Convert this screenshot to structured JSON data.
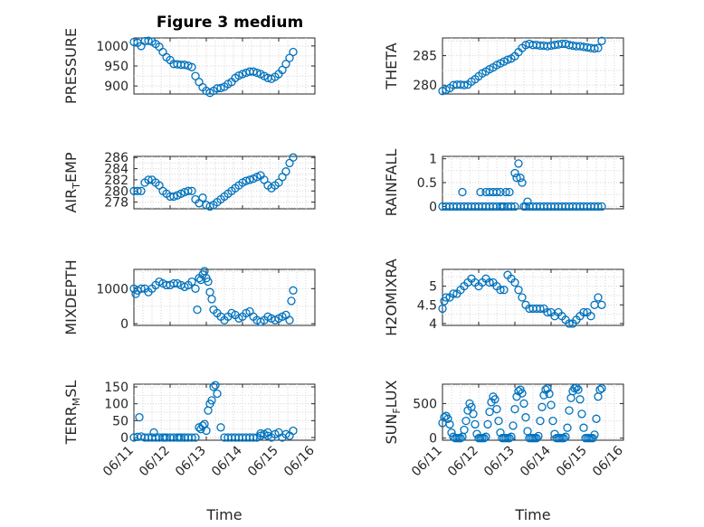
{
  "figure": {
    "title": "Figure 3 medium",
    "colors": {
      "marker": "#0072bd",
      "axis": "#262626",
      "grid": "#d6d6d6",
      "background": "#ffffff"
    }
  },
  "chart_data": [
    {
      "id": "pressure",
      "type": "scatter",
      "title": "Figure 3 medium",
      "ylabel": {
        "main": "PRESSURE",
        "sub": "",
        "rest": ""
      },
      "xlim": [
        0,
        5
      ],
      "ylim": [
        880,
        1020
      ],
      "yticks": [
        900,
        950,
        1000
      ],
      "xticks": [
        0,
        1,
        2,
        3,
        4,
        5
      ],
      "xticklabels": [],
      "xlabel": "",
      "grid": true,
      "x": [
        0.0,
        0.1,
        0.2,
        0.3,
        0.4,
        0.5,
        0.6,
        0.7,
        0.8,
        0.9,
        1.0,
        1.1,
        1.2,
        1.3,
        1.4,
        1.5,
        1.6,
        1.7,
        1.8,
        1.9,
        2.0,
        2.1,
        2.2,
        2.3,
        2.4,
        2.5,
        2.6,
        2.7,
        2.8,
        2.9,
        3.0,
        3.1,
        3.2,
        3.3,
        3.4,
        3.5,
        3.6,
        3.7,
        3.8,
        3.9,
        4.0,
        4.1,
        4.2,
        4.3,
        4.4
      ],
      "y": [
        1010,
        1008,
        1000,
        1012,
        1013,
        1011,
        1005,
        998,
        985,
        972,
        965,
        955,
        954,
        953,
        953,
        951,
        947,
        925,
        910,
        897,
        888,
        883,
        888,
        894,
        895,
        898,
        905,
        910,
        920,
        926,
        930,
        933,
        936,
        936,
        933,
        930,
        925,
        920,
        918,
        923,
        930,
        940,
        955,
        970,
        985
      ]
    },
    {
      "id": "theta",
      "type": "scatter",
      "ylabel": {
        "main": "THETA",
        "sub": "",
        "rest": ""
      },
      "xlim": [
        0,
        5
      ],
      "ylim": [
        278.5,
        288
      ],
      "yticks": [
        280,
        285
      ],
      "xticks": [
        0,
        1,
        2,
        3,
        4,
        5
      ],
      "xticklabels": [],
      "xlabel": "",
      "grid": true,
      "x": [
        0.0,
        0.1,
        0.2,
        0.3,
        0.4,
        0.5,
        0.6,
        0.7,
        0.8,
        0.9,
        1.0,
        1.1,
        1.2,
        1.3,
        1.4,
        1.5,
        1.6,
        1.7,
        1.8,
        1.9,
        2.0,
        2.1,
        2.2,
        2.3,
        2.4,
        2.5,
        2.6,
        2.7,
        2.8,
        2.9,
        3.0,
        3.1,
        3.2,
        3.3,
        3.4,
        3.5,
        3.6,
        3.7,
        3.8,
        3.9,
        4.0,
        4.1,
        4.2,
        4.3,
        4.4
      ],
      "y": [
        279,
        279.2,
        279.5,
        280,
        280.1,
        280.1,
        280,
        280.1,
        280.6,
        281,
        281.5,
        282,
        282.3,
        282.7,
        283,
        283.4,
        283.7,
        284,
        284.3,
        284.5,
        284.9,
        285.6,
        286.3,
        286.8,
        287,
        286.8,
        286.8,
        286.7,
        286.7,
        286.6,
        286.7,
        286.8,
        286.9,
        287,
        287,
        286.8,
        286.7,
        286.6,
        286.6,
        286.5,
        286.4,
        286.3,
        286.2,
        286.3,
        287.5
      ]
    },
    {
      "id": "air-temp",
      "type": "scatter",
      "ylabel": {
        "main": "AIR",
        "sub": "T",
        "rest": "EMP"
      },
      "xlim": [
        0,
        5
      ],
      "ylim": [
        276.8,
        286.2
      ],
      "yticks": [
        278,
        280,
        282,
        284,
        286
      ],
      "xticks": [
        0,
        1,
        2,
        3,
        4,
        5
      ],
      "xticklabels": [],
      "xlabel": "",
      "grid": true,
      "x": [
        0.0,
        0.1,
        0.2,
        0.3,
        0.4,
        0.5,
        0.6,
        0.7,
        0.8,
        0.9,
        1.0,
        1.1,
        1.2,
        1.3,
        1.4,
        1.5,
        1.6,
        1.7,
        1.8,
        1.9,
        2.0,
        2.1,
        2.2,
        2.3,
        2.4,
        2.5,
        2.6,
        2.7,
        2.8,
        2.9,
        3.0,
        3.1,
        3.2,
        3.3,
        3.4,
        3.5,
        3.6,
        3.7,
        3.8,
        3.9,
        4.0,
        4.1,
        4.2,
        4.3,
        4.4
      ],
      "y": [
        280,
        280,
        280,
        281.5,
        282,
        282,
        281.5,
        281,
        280,
        279.5,
        279,
        279,
        279.2,
        279.5,
        279.8,
        280,
        280,
        278.5,
        277.8,
        278.8,
        277.5,
        277.2,
        277.5,
        278,
        278.5,
        279,
        279.5,
        280,
        280.5,
        281,
        281.5,
        281.8,
        282,
        282.2,
        282.5,
        282.8,
        282,
        281,
        280.5,
        281,
        281.5,
        282.5,
        283.5,
        285,
        286
      ]
    },
    {
      "id": "rainfall",
      "type": "scatter",
      "ylabel": {
        "main": "RAINFALL",
        "sub": "",
        "rest": ""
      },
      "xlim": [
        0,
        5
      ],
      "ylim": [
        -0.05,
        1.05
      ],
      "yticks": [
        0,
        0.5,
        1
      ],
      "xticks": [
        0,
        1,
        2,
        3,
        4,
        5
      ],
      "xticklabels": [],
      "xlabel": "",
      "grid": true,
      "x": [
        0.0,
        0.1,
        0.2,
        0.3,
        0.4,
        0.5,
        0.6,
        0.7,
        0.8,
        0.9,
        1.0,
        1.1,
        1.2,
        1.3,
        1.4,
        1.5,
        1.6,
        1.7,
        1.8,
        1.9,
        2.0,
        2.05,
        2.1,
        2.15,
        2.2,
        2.25,
        2.3,
        2.35,
        2.4,
        2.5,
        2.6,
        2.7,
        2.8,
        2.9,
        3.0,
        3.1,
        3.2,
        3.3,
        3.4,
        3.5,
        3.6,
        3.7,
        3.8,
        3.9,
        4.0,
        4.1,
        4.2,
        4.3,
        4.4,
        0.55,
        1.05,
        1.2,
        1.3,
        1.4,
        1.5,
        1.6,
        1.65,
        1.75,
        1.85,
        1.9,
        2.0
      ],
      "y": [
        0,
        0,
        0,
        0,
        0,
        0,
        0,
        0,
        0,
        0,
        0,
        0,
        0,
        0,
        0,
        0,
        0,
        0,
        0,
        0,
        0.7,
        0.6,
        0.9,
        0.6,
        0.5,
        0,
        0,
        0.1,
        0,
        0,
        0,
        0,
        0,
        0,
        0,
        0,
        0,
        0,
        0,
        0,
        0,
        0,
        0,
        0,
        0,
        0,
        0,
        0,
        0,
        0.3,
        0.3,
        0.3,
        0.3,
        0.3,
        0.3,
        0.3,
        0,
        0.3,
        0.3,
        0,
        0
      ]
    },
    {
      "id": "mixdepth",
      "type": "scatter",
      "ylabel": {
        "main": "MIXDEPTH",
        "sub": "",
        "rest": ""
      },
      "xlim": [
        0,
        5
      ],
      "ylim": [
        -50,
        1550
      ],
      "yticks": [
        0,
        1000
      ],
      "xticks": [
        0,
        1,
        2,
        3,
        4,
        5
      ],
      "xticklabels": [],
      "xlabel": "",
      "grid": true,
      "x": [
        0.0,
        0.05,
        0.1,
        0.2,
        0.3,
        0.4,
        0.5,
        0.6,
        0.7,
        0.8,
        0.9,
        1.0,
        1.1,
        1.2,
        1.3,
        1.4,
        1.5,
        1.6,
        1.7,
        1.75,
        1.8,
        1.85,
        1.9,
        1.95,
        2.0,
        2.05,
        2.1,
        2.15,
        2.2,
        2.3,
        2.4,
        2.5,
        2.6,
        2.7,
        2.8,
        2.9,
        3.0,
        3.1,
        3.2,
        3.3,
        3.4,
        3.5,
        3.6,
        3.7,
        3.8,
        3.9,
        4.0,
        4.1,
        4.2,
        4.3,
        4.35,
        4.4
      ],
      "y": [
        1000,
        850,
        950,
        1000,
        1000,
        900,
        1000,
        1100,
        1200,
        1150,
        1100,
        1100,
        1150,
        1150,
        1100,
        1050,
        1100,
        1200,
        1000,
        400,
        1300,
        1250,
        1400,
        1500,
        1300,
        1200,
        900,
        700,
        400,
        300,
        200,
        100,
        200,
        300,
        250,
        150,
        200,
        300,
        350,
        200,
        100,
        50,
        100,
        200,
        150,
        100,
        150,
        200,
        250,
        100,
        650,
        950
      ]
    },
    {
      "id": "h2omixra",
      "type": "scatter",
      "ylabel": {
        "main": "H2OMIXRA",
        "sub": "",
        "rest": ""
      },
      "xlim": [
        0,
        5
      ],
      "ylim": [
        3.95,
        5.45
      ],
      "yticks": [
        4,
        4.5,
        5
      ],
      "xticks": [
        0,
        1,
        2,
        3,
        4,
        5
      ],
      "xticklabels": [],
      "xlabel": "",
      "grid": true,
      "x": [
        0.0,
        0.05,
        0.1,
        0.2,
        0.3,
        0.4,
        0.5,
        0.6,
        0.7,
        0.8,
        0.9,
        1.0,
        1.1,
        1.2,
        1.3,
        1.4,
        1.5,
        1.6,
        1.7,
        1.8,
        1.9,
        2.0,
        2.1,
        2.2,
        2.3,
        2.4,
        2.5,
        2.6,
        2.7,
        2.8,
        2.9,
        3.0,
        3.1,
        3.2,
        3.3,
        3.4,
        3.5,
        3.6,
        3.7,
        3.8,
        3.9,
        4.0,
        4.1,
        4.2,
        4.3,
        4.4
      ],
      "y": [
        4.4,
        4.6,
        4.7,
        4.7,
        4.8,
        4.8,
        4.9,
        5.0,
        5.1,
        5.2,
        5.1,
        5.0,
        5.1,
        5.2,
        5.1,
        5.1,
        5.0,
        4.9,
        4.9,
        5.3,
        5.2,
        5.1,
        4.9,
        4.7,
        4.5,
        4.4,
        4.4,
        4.4,
        4.4,
        4.4,
        4.3,
        4.3,
        4.2,
        4.3,
        4.2,
        4.1,
        4.0,
        4.0,
        4.1,
        4.2,
        4.3,
        4.3,
        4.2,
        4.5,
        4.7,
        4.5
      ]
    },
    {
      "id": "terr-msl",
      "type": "scatter",
      "ylabel": {
        "main": "TERR",
        "sub": "M",
        "rest": "SL"
      },
      "xlim": [
        0,
        5
      ],
      "ylim": [
        -8,
        158
      ],
      "yticks": [
        0,
        50,
        100,
        150
      ],
      "xticks": [
        0,
        1,
        2,
        3,
        4,
        5
      ],
      "xticklabels": [
        "06/11",
        "06/12",
        "06/13",
        "06/14",
        "06/15",
        "06/16"
      ],
      "xlabel": "Time",
      "grid": true,
      "x": [
        0.0,
        0.1,
        0.2,
        0.3,
        0.4,
        0.5,
        0.6,
        0.7,
        0.8,
        0.9,
        1.0,
        1.1,
        1.2,
        1.3,
        1.4,
        1.5,
        1.6,
        1.7,
        1.8,
        1.9,
        2.0,
        2.05,
        2.1,
        2.15,
        2.2,
        2.25,
        2.3,
        2.4,
        2.5,
        2.6,
        2.7,
        2.8,
        2.9,
        3.0,
        3.1,
        3.2,
        3.3,
        3.4,
        3.5,
        3.6,
        3.7,
        3.8,
        3.9,
        4.0,
        4.1,
        4.2,
        4.3,
        4.4,
        0.15,
        0.55,
        0.85,
        1.25,
        1.4,
        1.85,
        1.95,
        3.5,
        3.7
      ],
      "y": [
        0,
        2,
        3,
        0,
        0,
        0,
        0,
        0,
        0,
        0,
        0,
        0,
        0,
        0,
        0,
        0,
        0,
        0,
        30,
        35,
        20,
        80,
        100,
        110,
        150,
        155,
        130,
        30,
        0,
        0,
        0,
        0,
        0,
        0,
        0,
        0,
        0,
        0,
        5,
        10,
        5,
        0,
        10,
        15,
        0,
        10,
        5,
        20,
        60,
        15,
        0,
        0,
        0,
        25,
        40,
        12,
        15
      ]
    },
    {
      "id": "sun-flux",
      "type": "scatter",
      "ylabel": {
        "main": "SUN",
        "sub": "F",
        "rest": "LUX"
      },
      "xlim": [
        0,
        5
      ],
      "ylim": [
        -30,
        780
      ],
      "yticks": [
        0,
        500
      ],
      "xticks": [
        0,
        1,
        2,
        3,
        4,
        5
      ],
      "xticklabels": [
        "06/11",
        "06/12",
        "06/13",
        "06/14",
        "06/15",
        "06/16"
      ],
      "xlabel": "Time",
      "grid": true,
      "x": [
        0.0,
        0.05,
        0.1,
        0.15,
        0.2,
        0.25,
        0.3,
        0.35,
        0.4,
        0.45,
        0.5,
        0.55,
        0.6,
        0.65,
        0.7,
        0.75,
        0.8,
        0.85,
        0.9,
        0.95,
        1.0,
        1.05,
        1.1,
        1.15,
        1.2,
        1.25,
        1.3,
        1.35,
        1.4,
        1.45,
        1.5,
        1.55,
        1.6,
        1.65,
        1.7,
        1.75,
        1.8,
        1.85,
        1.9,
        1.95,
        2.0,
        2.05,
        2.1,
        2.15,
        2.2,
        2.25,
        2.3,
        2.35,
        2.4,
        2.45,
        2.5,
        2.55,
        2.6,
        2.65,
        2.7,
        2.75,
        2.8,
        2.85,
        2.9,
        2.95,
        3.0,
        3.05,
        3.1,
        3.15,
        3.2,
        3.25,
        3.3,
        3.35,
        3.4,
        3.45,
        3.5,
        3.55,
        3.6,
        3.65,
        3.7,
        3.75,
        3.8,
        3.85,
        3.9,
        3.95,
        4.0,
        4.05,
        4.1,
        4.15,
        4.2,
        4.25,
        4.3,
        4.35,
        4.4
      ],
      "y": [
        220,
        300,
        320,
        280,
        200,
        80,
        20,
        0,
        0,
        0,
        0,
        20,
        120,
        250,
        400,
        500,
        450,
        350,
        200,
        60,
        0,
        0,
        0,
        0,
        20,
        200,
        380,
        520,
        600,
        560,
        420,
        250,
        80,
        0,
        0,
        0,
        0,
        0,
        20,
        180,
        420,
        600,
        680,
        700,
        650,
        500,
        300,
        100,
        0,
        0,
        0,
        0,
        0,
        30,
        250,
        450,
        620,
        700,
        720,
        640,
        480,
        250,
        60,
        0,
        0,
        0,
        0,
        0,
        20,
        150,
        400,
        580,
        680,
        720,
        730,
        700,
        560,
        350,
        150,
        0,
        0,
        0,
        0,
        0,
        50,
        280,
        600,
        700,
        720
      ]
    }
  ]
}
